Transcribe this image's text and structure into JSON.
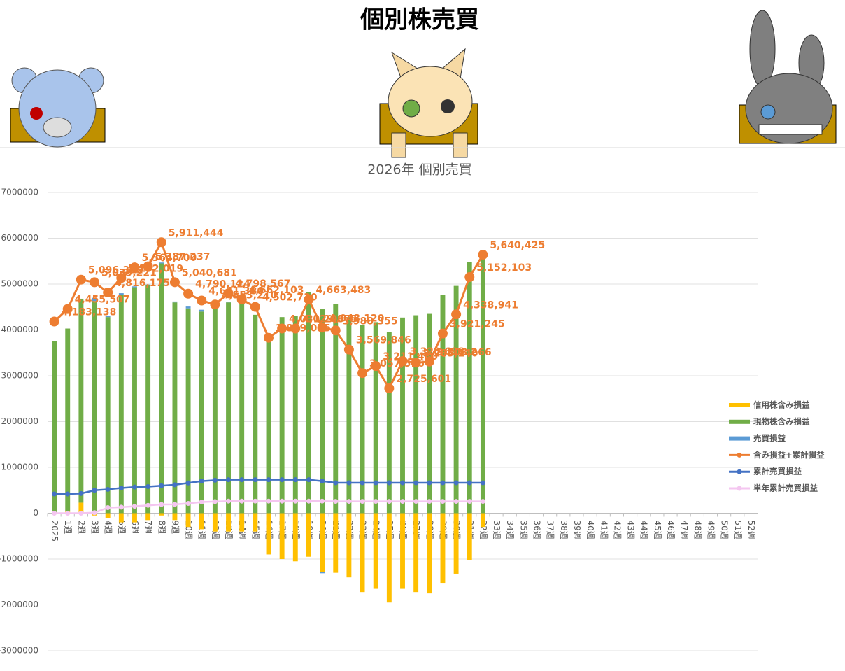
{
  "page_title": "個別株売買",
  "chart_data": {
    "type": "combo",
    "title": "2026年 個別売買",
    "categories": [
      "2025",
      "1週",
      "2週",
      "3週",
      "4週",
      "5週",
      "6週",
      "7週",
      "8週",
      "9週",
      "10週",
      "11週",
      "12週",
      "13週",
      "14週",
      "15週",
      "16週",
      "17週",
      "18週",
      "19週",
      "20週",
      "21週",
      "22週",
      "23週",
      "24週",
      "25週",
      "26週",
      "27週",
      "28週",
      "29週",
      "30週",
      "31週",
      "32週",
      "33週",
      "34週",
      "35週",
      "36週",
      "37週",
      "38週",
      "39週",
      "40週",
      "41週",
      "42週",
      "43週",
      "44週",
      "45週",
      "46週",
      "47週",
      "48週",
      "49週",
      "50週",
      "51週",
      "52週"
    ],
    "ylim": [
      -3000000,
      7000000
    ],
    "yticks": [
      -3000000,
      -2000000,
      -1000000,
      0,
      1000000,
      2000000,
      3000000,
      4000000,
      5000000,
      6000000,
      7000000
    ],
    "grid": true,
    "legend": "right",
    "series": [
      {
        "name": "信用株含み損益",
        "kind": "bar",
        "color": "#ffc000",
        "values": [
          0,
          50000,
          230000,
          -50000,
          -100000,
          -200000,
          -200000,
          -150000,
          -50000,
          -150000,
          -300000,
          -350000,
          -400000,
          -400000,
          -400000,
          -400000,
          -900000,
          -1000000,
          -1050000,
          -950000,
          -1280000,
          -1300000,
          -1400000,
          -1720000,
          -1650000,
          -1950000,
          -1650000,
          -1720000,
          -1750000,
          -1520000,
          -1320000,
          -1020000,
          -300000,
          null,
          null,
          null,
          null,
          null,
          null,
          null,
          null,
          null,
          null,
          null,
          null,
          null,
          null,
          null,
          null,
          null,
          null,
          null,
          null
        ]
      },
      {
        "name": "現物株含み損益",
        "kind": "bar",
        "color": "#70ad47",
        "values": [
          3750000,
          3980000,
          4450000,
          4630000,
          4280000,
          4770000,
          4930000,
          4980000,
          5450000,
          4600000,
          4470000,
          4400000,
          4550000,
          4600000,
          4600000,
          4330000,
          3850000,
          4280000,
          4300000,
          4830000,
          4450000,
          4560000,
          4280000,
          4100000,
          4170000,
          3950000,
          4270000,
          4320000,
          4350000,
          4770000,
          4960000,
          5480000,
          5640000,
          null,
          null,
          null,
          null,
          null,
          null,
          null,
          null,
          null,
          null,
          null,
          null,
          null,
          null,
          null,
          null,
          null,
          null,
          null,
          null
        ]
      },
      {
        "name": "売買損益",
        "kind": "bar",
        "color": "#5b9bd5",
        "values": [
          0,
          0,
          0,
          70000,
          20000,
          30000,
          20000,
          10000,
          20000,
          20000,
          40000,
          40000,
          20000,
          10000,
          0,
          0,
          0,
          0,
          0,
          0,
          -30000,
          0,
          0,
          0,
          0,
          0,
          0,
          0,
          0,
          0,
          0,
          0,
          0,
          null,
          null,
          null,
          null,
          null,
          null,
          null,
          null,
          null,
          null,
          null,
          null,
          null,
          null,
          null,
          null,
          null,
          null,
          null,
          null
        ]
      },
      {
        "name": "含み損益+累計損益",
        "kind": "line",
        "color": "#ed7d31",
        "values": [
          4183138,
          4455507,
          5096312,
          5039221,
          4816175,
          5132019,
          5364700,
          5387237,
          5911444,
          5040681,
          4790124,
          4641380,
          4553210,
          4798567,
          4662103,
          4502730,
          3829055,
          4031200,
          4029875,
          4663483,
          4048120,
          3988355,
          3569846,
          3057516,
          3211480,
          2725601,
          3320688,
          3285140,
          3308266,
          3921245,
          4338941,
          5152103,
          5640425,
          null,
          null,
          null,
          null,
          null,
          null,
          null,
          null,
          null,
          null,
          null,
          null,
          null,
          null,
          null,
          null,
          null,
          null,
          null,
          null
        ],
        "value_labels": [
          "4,183,138",
          "4,455,507",
          "5,096,312",
          "5,039,221",
          "4,816,175",
          "5,132,019",
          "5,364,700",
          "5,387,237",
          "5,911,444",
          "5,040,681",
          "4,790,124",
          "4,641,380",
          "4,553,210",
          "4,798,567",
          "4,662,103",
          "4,502,730",
          "3,829,055",
          "4,031,200",
          "4,029,875",
          "4,663,483",
          "4,048,120",
          "3,988,355",
          "3,569,846",
          "3,057,516",
          "3,211,480",
          "2,725,601",
          "3,320,688",
          "3,285,140",
          "3,308,266",
          "3,921,245",
          "4,338,941",
          "5,152,103",
          "5,640,425",
          null,
          null,
          null,
          null,
          null,
          null,
          null,
          null,
          null,
          null,
          null,
          null,
          null,
          null,
          null,
          null,
          null,
          null,
          null,
          null
        ]
      },
      {
        "name": "累計売買損益",
        "kind": "line",
        "color": "#4472c4",
        "values": [
          420000,
          420000,
          430000,
          500000,
          520000,
          550000,
          570000,
          580000,
          600000,
          620000,
          660000,
          700000,
          720000,
          730000,
          730000,
          730000,
          730000,
          730000,
          730000,
          730000,
          700000,
          663936,
          663936,
          663936,
          663936,
          663936,
          663936,
          663936,
          663936,
          663936,
          663936,
          663936,
          663936,
          null,
          null,
          null,
          null,
          null,
          null,
          null,
          null,
          null,
          null,
          null,
          null,
          null,
          null,
          null,
          null,
          null,
          null,
          null,
          null
        ]
      },
      {
        "name": "単年累計売買損益",
        "kind": "line",
        "color": "#f4c6f0",
        "values": [
          0,
          0,
          0,
          11700,
          121236,
          131236,
          151236,
          171236,
          191236,
          192929,
          214300,
          244300,
          254300,
          264300,
          264300,
          264300,
          264300,
          264300,
          264300,
          264300,
          264300,
          258250,
          258250,
          258250,
          258250,
          258250,
          258250,
          258250,
          258250,
          258250,
          258250,
          258250,
          258250,
          null,
          null,
          null,
          null,
          null,
          null,
          null,
          null,
          null,
          null,
          null,
          null,
          null,
          null,
          null,
          null,
          null,
          null,
          null,
          null
        ]
      }
    ]
  }
}
